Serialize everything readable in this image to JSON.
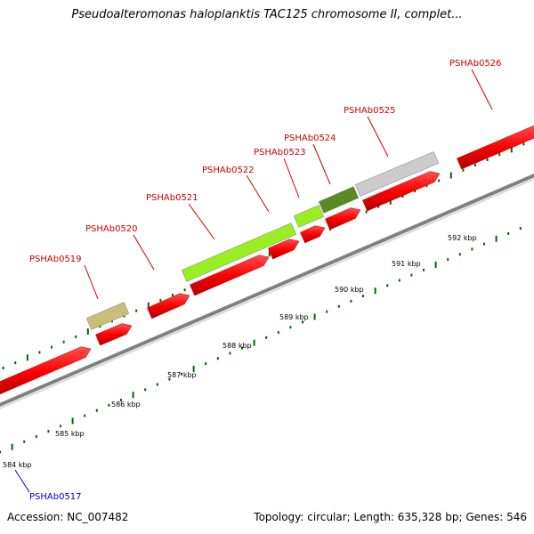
{
  "title": "Pseudoalteromonas haloplanktis TAC125 chromosome II, complet...",
  "footer": {
    "accession": "Accession: NC_007482",
    "summary": "Topology: circular; Length: 635,328 bp; Genes: 546"
  },
  "colors": {
    "forward_cds": "#ff0000",
    "gene_label": "#cc0000",
    "other_label": "#0000cc",
    "tick": "#006600",
    "backbone": "#808080"
  },
  "kbp_ticks": [
    {
      "label": "584 kbp"
    },
    {
      "label": "585 kbp"
    },
    {
      "label": "586 kbp"
    },
    {
      "label": "587 kbp"
    },
    {
      "label": "588 kbp"
    },
    {
      "label": "589 kbp"
    },
    {
      "label": "590 kbp"
    },
    {
      "label": "591 kbp"
    },
    {
      "label": "592 kbp"
    }
  ],
  "gene_labels": [
    {
      "name": "PSHAb0517",
      "color_key": "other_label"
    },
    {
      "name": "PSHAb0519",
      "color_key": "gene_label"
    },
    {
      "name": "PSHAb0520",
      "color_key": "gene_label"
    },
    {
      "name": "PSHAb0521",
      "color_key": "gene_label"
    },
    {
      "name": "PSHAb0522",
      "color_key": "gene_label"
    },
    {
      "name": "PSHAb0523",
      "color_key": "gene_label"
    },
    {
      "name": "PSHAb0524",
      "color_key": "gene_label"
    },
    {
      "name": "PSHAb0525",
      "color_key": "gene_label"
    },
    {
      "name": "PSHAb0526",
      "color_key": "gene_label"
    }
  ],
  "feature_colors": {
    "b0519": "#c8c07a",
    "b0521": "#99ee22",
    "b0523": "#99ee22",
    "b0524": "#5a8a22",
    "b0525": "#cccccc"
  }
}
